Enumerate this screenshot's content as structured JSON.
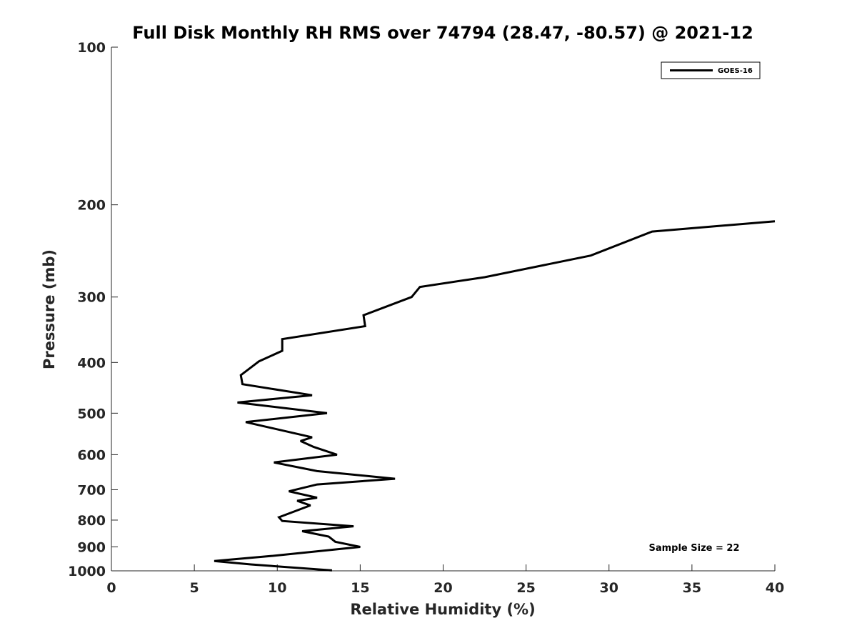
{
  "chart_data": {
    "type": "line",
    "title": "Full Disk Monthly RH RMS over 74794 (28.47, -80.57) @ 2021-12",
    "xlabel": "Relative Humidity (%)",
    "ylabel": "Pressure (mb)",
    "xlim": [
      0,
      40
    ],
    "ylim": [
      100,
      1000
    ],
    "y_scale": "log",
    "y_reversed": true,
    "grid": false,
    "legend_position": "top-right",
    "x_ticks": [
      "0",
      "5",
      "10",
      "15",
      "20",
      "25",
      "30",
      "35",
      "40"
    ],
    "x_tick_values": [
      0,
      5,
      10,
      15,
      20,
      25,
      30,
      35,
      40
    ],
    "y_ticks": [
      "100",
      "200",
      "300",
      "400",
      "500",
      "600",
      "700",
      "800",
      "900",
      "1000"
    ],
    "y_tick_values": [
      100,
      200,
      300,
      400,
      500,
      600,
      700,
      800,
      900,
      1000
    ],
    "series": [
      {
        "name": "GOES-16",
        "color": "#000000",
        "points": [
          [
            40.0,
            215
          ],
          [
            32.6,
            225
          ],
          [
            28.9,
            250
          ],
          [
            22.5,
            275
          ],
          [
            18.6,
            287
          ],
          [
            18.1,
            300
          ],
          [
            15.2,
            325
          ],
          [
            15.3,
            341
          ],
          [
            10.3,
            361
          ],
          [
            10.3,
            380
          ],
          [
            8.9,
            398
          ],
          [
            7.8,
            423
          ],
          [
            7.9,
            440
          ],
          [
            12.1,
            462
          ],
          [
            7.6,
            477
          ],
          [
            13.0,
            500
          ],
          [
            8.1,
            520
          ],
          [
            12.1,
            556
          ],
          [
            11.4,
            565
          ],
          [
            12.2,
            580
          ],
          [
            13.6,
            600
          ],
          [
            9.8,
            621
          ],
          [
            12.4,
            645
          ],
          [
            17.1,
            667
          ],
          [
            12.4,
            684
          ],
          [
            10.7,
            705
          ],
          [
            12.4,
            725
          ],
          [
            11.2,
            735
          ],
          [
            12.0,
            750
          ],
          [
            10.1,
            790
          ],
          [
            10.3,
            803
          ],
          [
            14.6,
            822
          ],
          [
            11.5,
            840
          ],
          [
            13.1,
            860
          ],
          [
            13.5,
            880
          ],
          [
            15.0,
            900
          ],
          [
            9.6,
            937
          ],
          [
            6.2,
            958
          ],
          [
            8.4,
            972
          ],
          [
            13.3,
            998
          ]
        ]
      }
    ],
    "annotation": "Sample Size = 22"
  }
}
